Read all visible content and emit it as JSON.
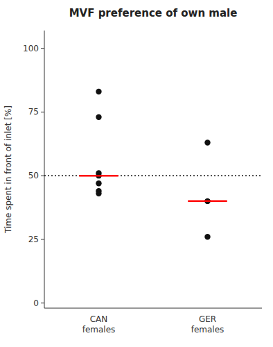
{
  "chart_data": {
    "type": "strip",
    "title": "MVF preference of own male",
    "y_label": "Time spent in front of inlet [%]",
    "categories": [
      "CAN\nfemales",
      "GER\nfemales"
    ],
    "series": [
      {
        "type": "points",
        "color": "#111111",
        "values": [
          [
            83,
            73,
            51,
            50,
            47,
            44,
            43
          ],
          [
            63,
            40,
            40,
            26
          ]
        ]
      },
      {
        "type": "median",
        "color": "#ff0000",
        "values": [
          50,
          40
        ]
      }
    ],
    "reference_line": 50,
    "ylim": [
      -2,
      107
    ],
    "yticks": [
      0,
      25,
      50,
      75,
      100
    ],
    "grid": false
  }
}
